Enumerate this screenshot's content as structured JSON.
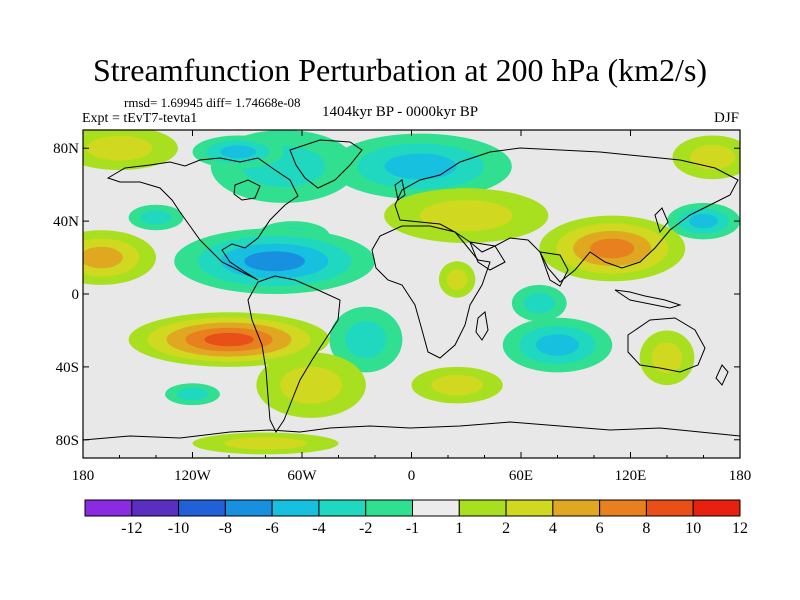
{
  "title": "Streamfunction Perturbation at 200 hPa (km2/s)",
  "stats_text": "rmsd= 1.69945 diff= 1.74668e-08",
  "experiment_text": "Expt = tEvT7-tevta1",
  "period_text": "1404kyr BP - 0000kyr BP",
  "season_text": "DJF",
  "map": {
    "projection": "cylindrical-equidistant",
    "lon_range": [
      -180,
      180
    ],
    "lat_range": [
      -90,
      90
    ],
    "lat_ticks": [
      {
        "value": 80,
        "label": "80N"
      },
      {
        "value": 40,
        "label": "40N"
      },
      {
        "value": 0,
        "label": "0"
      },
      {
        "value": -40,
        "label": "40S"
      },
      {
        "value": -80,
        "label": "80S"
      }
    ],
    "lon_ticks": [
      {
        "value": -180,
        "label": "180"
      },
      {
        "value": -120,
        "label": "120W"
      },
      {
        "value": -60,
        "label": "60W"
      },
      {
        "value": 0,
        "label": "0"
      },
      {
        "value": 60,
        "label": "60E"
      },
      {
        "value": 120,
        "label": "120E"
      },
      {
        "value": 180,
        "label": "180"
      }
    ],
    "anomalies": [
      {
        "name": "north-pacific-positive",
        "lon": -160,
        "lat": 80,
        "rx": 32,
        "ry": 12,
        "value": 2
      },
      {
        "name": "west-north-atlantic-negative",
        "lon": -70,
        "lat": 70,
        "rx": 40,
        "ry": 20,
        "value": -2
      },
      {
        "name": "arctic-canada-negative",
        "lon": -95,
        "lat": 78,
        "rx": 25,
        "ry": 9,
        "value": -4
      },
      {
        "name": "eurasia-negative",
        "lon": 5,
        "lat": 70,
        "rx": 50,
        "ry": 18,
        "value": -4
      },
      {
        "name": "central-pacific-north-negative",
        "lon": -140,
        "lat": 42,
        "rx": 15,
        "ry": 7,
        "value": -2
      },
      {
        "name": "gulf-negative",
        "lon": -65,
        "lat": 32,
        "rx": 20,
        "ry": 8,
        "value": -2
      },
      {
        "name": "mediterranean-positive",
        "lon": 30,
        "lat": 43,
        "rx": 45,
        "ry": 15,
        "value": 2
      },
      {
        "name": "west-pacific-negative",
        "lon": 160,
        "lat": 40,
        "rx": 20,
        "ry": 10,
        "value": -4
      },
      {
        "name": "arctic-siberia-positive",
        "lon": 165,
        "lat": 75,
        "rx": 22,
        "ry": 12,
        "value": 2
      },
      {
        "name": "asia-subtropical-positive",
        "lon": 110,
        "lat": 25,
        "rx": 40,
        "ry": 18,
        "value": 6
      },
      {
        "name": "east-pacific-positive",
        "lon": -170,
        "lat": 20,
        "rx": 30,
        "ry": 15,
        "value": 4
      },
      {
        "name": "tropical-america-negative",
        "lon": -75,
        "lat": 18,
        "rx": 55,
        "ry": 18,
        "value": -6
      },
      {
        "name": "central-africa-positive",
        "lon": 25,
        "lat": 8,
        "rx": 10,
        "ry": 10,
        "value": 2
      },
      {
        "name": "tropical-indian-negative",
        "lon": 70,
        "lat": -5,
        "rx": 15,
        "ry": 10,
        "value": -2
      },
      {
        "name": "south-pacific-positive",
        "lon": -100,
        "lat": -25,
        "rx": 55,
        "ry": 15,
        "value": 8
      },
      {
        "name": "south-atlantic-negative",
        "lon": -25,
        "lat": -25,
        "rx": 20,
        "ry": 18,
        "value": -2
      },
      {
        "name": "patagonia-positive",
        "lon": -55,
        "lat": -50,
        "rx": 30,
        "ry": 18,
        "value": 2
      },
      {
        "name": "south-indian-negative",
        "lon": 80,
        "lat": -28,
        "rx": 30,
        "ry": 15,
        "value": -4
      },
      {
        "name": "australia-positive",
        "lon": 140,
        "lat": -35,
        "rx": 15,
        "ry": 15,
        "value": 2
      },
      {
        "name": "south-ocean-positive",
        "lon": 25,
        "lat": -50,
        "rx": 25,
        "ry": 10,
        "value": 2
      },
      {
        "name": "southern-ocean-negative",
        "lon": -120,
        "lat": -55,
        "rx": 15,
        "ry": 6,
        "value": -2
      },
      {
        "name": "antarctica-positive",
        "lon": -80,
        "lat": -82,
        "rx": 40,
        "ry": 6,
        "value": 2
      }
    ]
  },
  "colorbar": {
    "labels": [
      "-12",
      "-10",
      "-8",
      "-6",
      "-4",
      "-2",
      "-1",
      "1",
      "2",
      "4",
      "6",
      "8",
      "10",
      "12"
    ],
    "colors": [
      "#8a2be2",
      "#5a2ec0",
      "#2060d8",
      "#1890e0",
      "#18c0e0",
      "#20d8c0",
      "#30e090",
      "#ececec",
      "#a8e020",
      "#d0d820",
      "#e0a820",
      "#e88020",
      "#e85018",
      "#e82010"
    ]
  }
}
